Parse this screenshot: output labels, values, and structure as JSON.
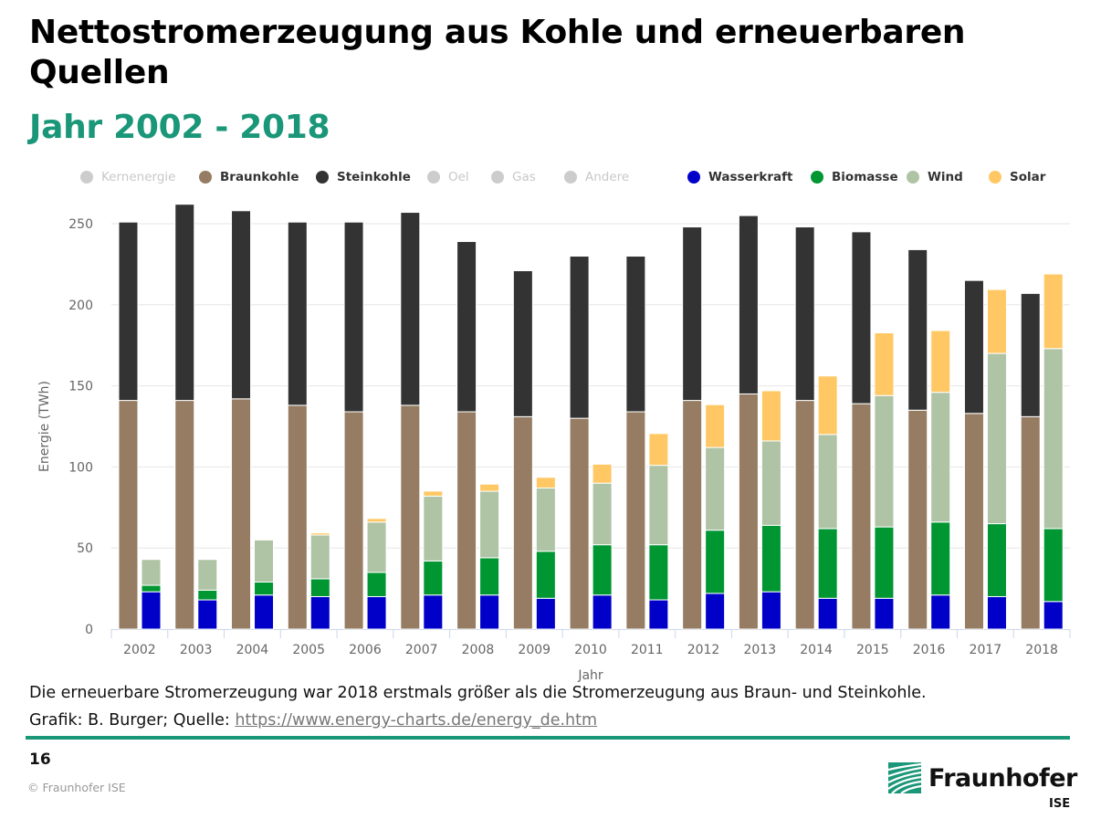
{
  "title": "Nettostromerzeugung aus Kohle und erneuerbaren Quellen",
  "subtitle": "Jahr 2002 - 2018",
  "legend": [
    {
      "key": "kernenergie",
      "label": "Kernenergie",
      "color": "#cccccc",
      "enabled": false
    },
    {
      "key": "braunkohle",
      "label": "Braunkohle",
      "color": "#957c62",
      "enabled": true
    },
    {
      "key": "steinkohle",
      "label": "Steinkohle",
      "color": "#333333",
      "enabled": true
    },
    {
      "key": "oel",
      "label": "Oel",
      "color": "#cccccc",
      "enabled": false
    },
    {
      "key": "gas",
      "label": "Gas",
      "color": "#cccccc",
      "enabled": false
    },
    {
      "key": "andere",
      "label": "Andere",
      "color": "#cccccc",
      "enabled": false
    },
    {
      "key": "wasserkraft",
      "label": "Wasserkraft",
      "color": "#0000c8",
      "enabled": true
    },
    {
      "key": "biomasse",
      "label": "Biomasse",
      "color": "#009632",
      "enabled": true
    },
    {
      "key": "wind",
      "label": "Wind",
      "color": "#afc3a5",
      "enabled": true
    },
    {
      "key": "solar",
      "label": "Solar",
      "color": "#ffc864",
      "enabled": true
    }
  ],
  "chart_data": {
    "type": "bar",
    "stacking": "grouped-stacked",
    "title": "Nettostromerzeugung aus Kohle und erneuerbaren Quellen",
    "subtitle": "Jahr 2002 - 2018",
    "xlabel": "Jahr",
    "ylabel": "Energie (TWh)",
    "ylim": [
      0,
      262
    ],
    "yticks": [
      0,
      50,
      100,
      150,
      200,
      250
    ],
    "grid": true,
    "legend_position": "top",
    "categories": [
      "2002",
      "2003",
      "2004",
      "2005",
      "2006",
      "2007",
      "2008",
      "2009",
      "2010",
      "2011",
      "2012",
      "2013",
      "2014",
      "2015",
      "2016",
      "2017",
      "2018"
    ],
    "stacks": [
      {
        "name": "Kohle",
        "series": [
          "Braunkohle",
          "Steinkohle"
        ]
      },
      {
        "name": "Erneuerbare",
        "series": [
          "Wasserkraft",
          "Biomasse",
          "Wind",
          "Solar"
        ]
      }
    ],
    "series": [
      {
        "name": "Braunkohle",
        "stack": "Kohle",
        "color": "#957c62",
        "values": [
          141,
          141,
          142,
          138,
          134,
          138,
          134,
          131,
          130,
          134,
          141,
          145,
          141,
          139,
          135,
          133,
          131
        ]
      },
      {
        "name": "Steinkohle",
        "stack": "Kohle",
        "color": "#333333",
        "values": [
          110,
          121,
          116,
          113,
          117,
          119,
          105,
          90,
          100,
          96,
          107,
          110,
          107,
          106,
          99,
          82,
          76
        ]
      },
      {
        "name": "Wasserkraft",
        "stack": "Erneuerbare",
        "color": "#0000c8",
        "values": [
          23,
          18,
          21,
          20,
          20,
          21,
          21,
          19,
          21,
          18,
          22,
          23,
          19,
          19,
          21,
          20,
          17
        ]
      },
      {
        "name": "Biomasse",
        "stack": "Erneuerbare",
        "color": "#009632",
        "values": [
          4,
          6,
          8,
          11,
          15,
          21,
          23,
          29,
          31,
          34,
          39,
          41,
          43,
          44,
          45,
          45,
          45
        ]
      },
      {
        "name": "Wind",
        "stack": "Erneuerbare",
        "color": "#afc3a5",
        "values": [
          16,
          19,
          26,
          27,
          31,
          40,
          41,
          39,
          38,
          49,
          51,
          52,
          58,
          81,
          80,
          105,
          111
        ]
      },
      {
        "name": "Solar",
        "stack": "Erneuerbare",
        "color": "#ffc864",
        "values": [
          0.2,
          0.3,
          0.6,
          1.3,
          2.2,
          3.1,
          4.4,
          6.6,
          11.7,
          19.6,
          26.4,
          31.0,
          36.1,
          38.7,
          38.1,
          39.4,
          46.0
        ]
      }
    ]
  },
  "caption": "Die erneuerbare Stromerzeugung war 2018 erstmals größer als die Stromerzeugung aus Braun- und Steinkohle.",
  "source": {
    "prefix": "Grafik: B. Burger; Quelle: ",
    "link_text": "https://www.energy-charts.de/energy_de.htm"
  },
  "footer": {
    "page_number": "16",
    "copyright": "© Fraunhofer ISE",
    "logo_text": "Fraunhofer",
    "logo_sub": "ISE"
  },
  "colors": {
    "accent": "#1a9678"
  }
}
